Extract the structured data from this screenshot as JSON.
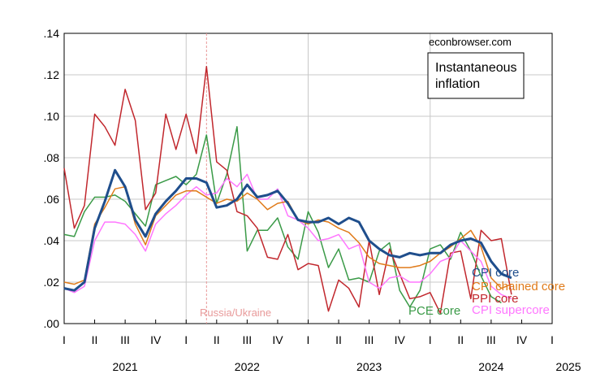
{
  "chart_data": {
    "type": "line",
    "source_note": "econbrowser.com",
    "legend_box": [
      "Instantaneous",
      "inflation"
    ],
    "event_label": "Russia/Ukraine",
    "event_month": 2022.167,
    "x_start": 2021.0,
    "x_end": 2025.0,
    "ylim": [
      0.0,
      0.14
    ],
    "y_ticks": [
      ".00",
      ".02",
      ".04",
      ".06",
      ".08",
      ".10",
      ".12",
      ".14"
    ],
    "quarter_labels": [
      "I",
      "II",
      "III",
      "IV",
      "I",
      "II",
      "III",
      "IV",
      "I",
      "II",
      "III",
      "IV",
      "I",
      "II",
      "III",
      "IV",
      "I"
    ],
    "year_labels": [
      "2021",
      "2022",
      "2023",
      "2024",
      "2025"
    ],
    "months_step": 0.0833333,
    "series": [
      {
        "name": "CPI core",
        "color": "#1f4e8c",
        "width": 3,
        "values": [
          0.017,
          0.016,
          0.02,
          0.046,
          0.059,
          0.074,
          0.066,
          0.05,
          0.042,
          0.053,
          0.059,
          0.064,
          0.07,
          0.07,
          0.068,
          0.056,
          0.057,
          0.06,
          0.067,
          0.061,
          0.062,
          0.064,
          0.058,
          0.05,
          0.049,
          0.049,
          0.051,
          0.048,
          0.051,
          0.049,
          0.04,
          0.036,
          0.033,
          0.032,
          0.034,
          0.033,
          0.034,
          0.034,
          0.038,
          0.04,
          0.041,
          0.039,
          0.03,
          0.024,
          0.022
        ]
      },
      {
        "name": "CPI chained core",
        "color": "#e07b1a",
        "width": 1.5,
        "values": [
          0.02,
          0.019,
          0.021,
          0.048,
          0.056,
          0.065,
          0.066,
          0.048,
          0.038,
          0.052,
          0.057,
          0.062,
          0.064,
          0.064,
          0.061,
          0.058,
          0.06,
          0.059,
          0.063,
          0.06,
          0.055,
          0.058,
          0.059,
          0.05,
          0.048,
          0.05,
          0.049,
          0.046,
          0.044,
          0.039,
          0.032,
          0.029,
          0.028,
          0.027,
          0.027,
          0.028,
          0.03,
          0.034,
          0.037,
          0.041,
          0.045,
          0.037,
          0.022,
          0.017,
          0.019
        ]
      },
      {
        "name": "PPI core",
        "color": "#c1272d",
        "width": 1.5,
        "values": [
          0.075,
          0.046,
          0.057,
          0.101,
          0.095,
          0.086,
          0.113,
          0.098,
          0.055,
          0.063,
          0.101,
          0.084,
          0.101,
          0.082,
          0.124,
          0.078,
          0.074,
          0.054,
          0.052,
          0.046,
          0.032,
          0.031,
          0.043,
          0.026,
          0.029,
          0.028,
          0.006,
          0.021,
          0.017,
          0.008,
          0.04,
          0.014,
          0.036,
          0.024,
          0.012,
          0.013,
          0.015,
          0.005,
          0.034,
          0.035,
          0.012,
          0.045,
          0.04,
          0.041,
          0.014
        ]
      },
      {
        "name": "PCE core",
        "color": "#3a9a47",
        "width": 1.5,
        "values": [
          0.043,
          0.042,
          0.054,
          0.061,
          0.061,
          0.062,
          0.059,
          0.053,
          0.047,
          0.067,
          0.069,
          0.071,
          0.067,
          0.072,
          0.091,
          0.058,
          0.072,
          0.095,
          0.035,
          0.045,
          0.045,
          0.051,
          0.037,
          0.031,
          0.054,
          0.044,
          0.027,
          0.036,
          0.021,
          0.022,
          0.02,
          0.035,
          0.039,
          0.016,
          0.008,
          0.016,
          0.036,
          0.038,
          0.031,
          0.044,
          0.035,
          0.023,
          0.013,
          0.01
        ]
      },
      {
        "name": "CPI supercore",
        "color": "#ff77ff",
        "width": 1.5,
        "values": [
          0.017,
          0.015,
          0.018,
          0.04,
          0.049,
          0.049,
          0.048,
          0.043,
          0.035,
          0.048,
          0.053,
          0.057,
          0.062,
          0.066,
          0.062,
          0.063,
          0.07,
          0.066,
          0.072,
          0.06,
          0.06,
          0.065,
          0.052,
          0.05,
          0.046,
          0.04,
          0.041,
          0.043,
          0.036,
          0.038,
          0.02,
          0.017,
          0.022,
          0.023,
          0.02,
          0.02,
          0.024,
          0.03,
          0.032,
          0.04,
          0.035,
          0.03,
          0.018,
          0.014,
          0.012
        ]
      }
    ]
  }
}
